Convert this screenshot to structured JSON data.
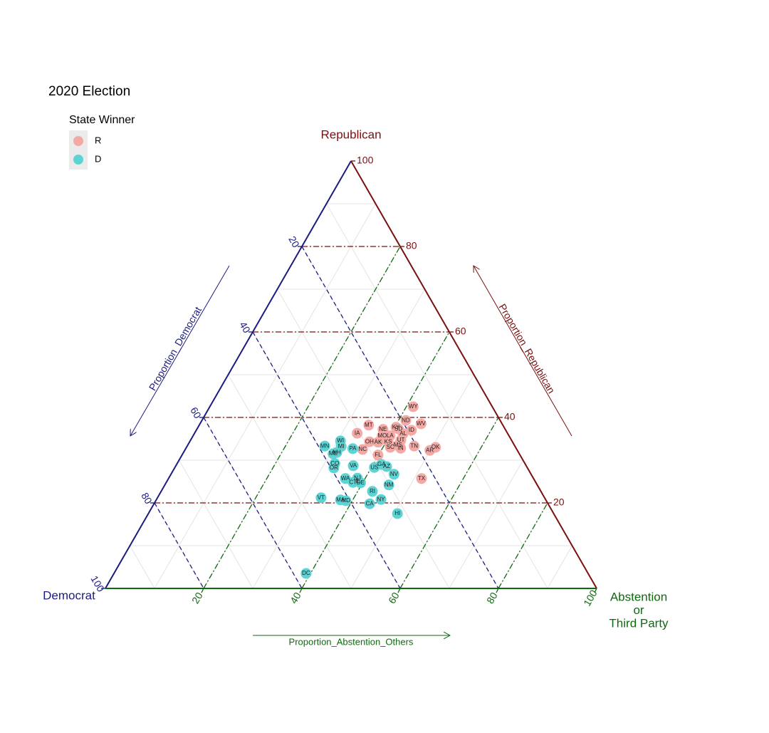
{
  "chart_data": {
    "type": "ternary",
    "title": "2020 Election",
    "legend_title": "State Winner",
    "vertex_labels": {
      "republican": [
        "Republican"
      ],
      "democrat": [
        "Democrat"
      ],
      "abstention": [
        "Abstention",
        "or",
        "Third Party"
      ]
    },
    "axis_titles": {
      "democrat": "Proportion_Democrat",
      "republican": "Proportion_Republican",
      "abstention": "Proportion_Abstention_Others"
    },
    "axis_colors": {
      "democrat": "#1c1c80",
      "republican": "#7a1010",
      "abstention": "#0e6a0e"
    },
    "lim": [
      0,
      100
    ],
    "ticks": [
      20,
      40,
      60,
      80,
      100
    ],
    "minor_grid": [
      10,
      20,
      30,
      40,
      50,
      60,
      70,
      80,
      90
    ],
    "series": [
      {
        "name": "R",
        "color": "#f4a9a5",
        "labels": [
          "WY",
          "ND",
          "WV",
          "KY",
          "SD",
          "ID",
          "MT",
          "NE",
          "AL",
          "MO",
          "LA",
          "UT",
          "IA",
          "AK",
          "KS",
          "OH",
          "MS",
          "SC",
          "IN",
          "TN",
          "NC",
          "FL",
          "AR",
          "OK",
          "TX"
        ],
        "republican": [
          42.5,
          39.3,
          38.5,
          37.7,
          37.3,
          37.0,
          38.2,
          37.2,
          36.2,
          35.7,
          35.7,
          34.7,
          36.3,
          34.2,
          34.3,
          34.3,
          33.5,
          33.0,
          32.8,
          33.3,
          32.5,
          31.2,
          32.3,
          33.0,
          25.7
        ],
        "democrat": [
          16.1,
          19.2,
          16.5,
          22.0,
          21.7,
          19.2,
          27.3,
          24.9,
          21.3,
          25.8,
          24.2,
          22.5,
          30.6,
          27.4,
          25.3,
          29.1,
          23.7,
          25.5,
          23.5,
          20.5,
          31.4,
          28.9,
          17.8,
          16.3,
          22.8
        ],
        "abstention": [
          41.4,
          41.5,
          45.0,
          40.3,
          41.0,
          43.8,
          34.5,
          37.9,
          42.5,
          38.5,
          40.1,
          42.8,
          33.1,
          38.4,
          40.4,
          36.6,
          42.8,
          41.5,
          43.7,
          46.2,
          36.1,
          39.9,
          49.9,
          50.7,
          51.5
        ]
      },
      {
        "name": "D",
        "color": "#5ed3d4",
        "labels": [
          "MN",
          "WI",
          "MI",
          "PA",
          "ME",
          "NH",
          "CO",
          "OR",
          "VA",
          "GA",
          "AZ",
          "US",
          "NV",
          "NJ",
          "WA",
          "CT",
          "DE",
          "IL",
          "NM",
          "RI",
          "NY",
          "CA",
          "HI",
          "VT",
          "MA",
          "MD",
          "DC"
        ],
        "republican": [
          33.3,
          34.5,
          33.2,
          32.7,
          31.5,
          31.8,
          29.2,
          28.2,
          28.7,
          29.0,
          28.5,
          28.3,
          26.7,
          25.8,
          25.7,
          24.8,
          24.7,
          25.0,
          24.2,
          22.7,
          20.8,
          19.8,
          17.5,
          21.2,
          20.7,
          20.5,
          3.5
        ],
        "democrat": [
          38.7,
          34.9,
          35.4,
          33.3,
          37.9,
          37.0,
          38.7,
          39.4,
          35.2,
          29.3,
          28.5,
          31.1,
          27.9,
          35.8,
          38.3,
          37.2,
          35.7,
          36.1,
          30.2,
          34.3,
          33.5,
          36.3,
          31.8,
          45.5,
          41.8,
          40.8,
          57.4
        ],
        "abstention": [
          28.0,
          30.6,
          31.4,
          34.0,
          30.6,
          31.2,
          32.1,
          32.4,
          36.1,
          41.7,
          43.0,
          40.6,
          45.4,
          38.4,
          36.0,
          38.0,
          39.6,
          38.9,
          45.6,
          43.0,
          45.7,
          43.9,
          50.7,
          33.3,
          37.5,
          38.7,
          39.1
        ]
      }
    ]
  }
}
